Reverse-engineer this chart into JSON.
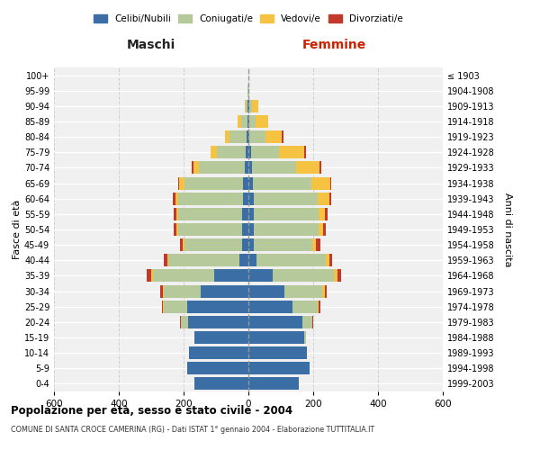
{
  "age_groups": [
    "0-4",
    "5-9",
    "10-14",
    "15-19",
    "20-24",
    "25-29",
    "30-34",
    "35-39",
    "40-44",
    "45-49",
    "50-54",
    "55-59",
    "60-64",
    "65-69",
    "70-74",
    "75-79",
    "80-84",
    "85-89",
    "90-94",
    "95-99",
    "100+"
  ],
  "birth_years": [
    "1999-2003",
    "1994-1998",
    "1989-1993",
    "1984-1988",
    "1979-1983",
    "1974-1978",
    "1969-1973",
    "1964-1968",
    "1959-1963",
    "1954-1958",
    "1949-1953",
    "1944-1948",
    "1939-1943",
    "1934-1938",
    "1929-1933",
    "1924-1928",
    "1919-1923",
    "1914-1918",
    "1909-1913",
    "1904-1908",
    "≤ 1903"
  ],
  "maschi": {
    "celibi": [
      168,
      188,
      182,
      168,
      185,
      190,
      148,
      105,
      28,
      20,
      20,
      20,
      18,
      18,
      12,
      8,
      5,
      3,
      2,
      0,
      0
    ],
    "coniugati": [
      0,
      0,
      0,
      0,
      22,
      70,
      112,
      190,
      218,
      178,
      198,
      198,
      200,
      180,
      140,
      88,
      52,
      20,
      6,
      2,
      1
    ],
    "vedovi": [
      0,
      0,
      0,
      0,
      0,
      4,
      4,
      4,
      4,
      5,
      5,
      5,
      8,
      16,
      18,
      20,
      16,
      10,
      4,
      0,
      0
    ],
    "divorziati": [
      0,
      0,
      0,
      0,
      4,
      4,
      8,
      14,
      10,
      8,
      8,
      8,
      8,
      4,
      4,
      0,
      0,
      0,
      0,
      0,
      0
    ]
  },
  "femmine": {
    "nubili": [
      155,
      188,
      180,
      172,
      168,
      135,
      112,
      75,
      24,
      18,
      18,
      18,
      16,
      14,
      10,
      7,
      4,
      3,
      2,
      0,
      0
    ],
    "coniugate": [
      0,
      0,
      0,
      5,
      28,
      78,
      115,
      190,
      215,
      178,
      198,
      198,
      198,
      180,
      138,
      88,
      48,
      20,
      8,
      2,
      0
    ],
    "vedove": [
      0,
      0,
      0,
      0,
      0,
      5,
      8,
      10,
      10,
      12,
      14,
      20,
      36,
      58,
      72,
      78,
      52,
      38,
      20,
      2,
      0
    ],
    "divorziate": [
      0,
      0,
      0,
      0,
      4,
      4,
      8,
      12,
      10,
      14,
      8,
      8,
      6,
      4,
      4,
      4,
      4,
      0,
      0,
      0,
      0
    ]
  },
  "colors": {
    "celibi": "#3a6ea5",
    "coniugati": "#b5c99a",
    "vedovi": "#f5c242",
    "divorziati": "#c0392b"
  },
  "title": "Popolazione per età, sesso e stato civile - 2004",
  "subtitle": "COMUNE DI SANTA CROCE CAMERINA (RG) - Dati ISTAT 1° gennaio 2004 - Elaborazione TUTTITALIA.IT",
  "xlabel_left": "Maschi",
  "xlabel_right": "Femmine",
  "ylabel_left": "Fasce di età",
  "ylabel_right": "Anni di nascita",
  "xlim": 600,
  "bg_color": "#ffffff",
  "grid_color": "#cccccc",
  "legend_labels": [
    "Celibi/Nubili",
    "Coniugati/e",
    "Vedovi/e",
    "Divorziati/e"
  ]
}
